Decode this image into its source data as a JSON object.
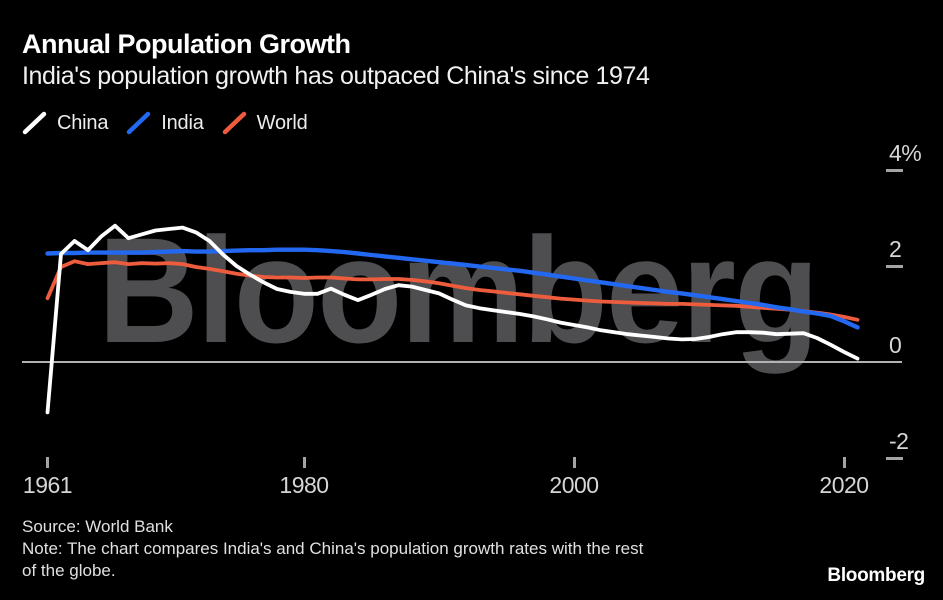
{
  "header": {
    "title": "Annual Population Growth",
    "subtitle": "India's population growth has outpaced China's since 1974"
  },
  "legend": {
    "items": [
      {
        "label": "China",
        "color": "#ffffff"
      },
      {
        "label": "India",
        "color": "#2368f0"
      },
      {
        "label": "World",
        "color": "#ee5c3e"
      }
    ]
  },
  "watermark": {
    "text": "Bloomberg",
    "color": "#4e4e50"
  },
  "footer": {
    "source": "Source: World Bank",
    "note_lines": [
      "Note: The chart compares India's and China's population growth rates with the rest",
      "of the globe."
    ],
    "logo": "Bloomberg"
  },
  "chart_data": {
    "type": "line",
    "title": "Annual Population Growth",
    "subtitle": "India's population growth has outpaced China's since 1974",
    "unit": "% annual population growth",
    "x_range": [
      1961,
      2021
    ],
    "ylim": [
      -2.6,
      4.5
    ],
    "grid": false,
    "legend_position": "top-left",
    "x_axis": {
      "ticks": [
        {
          "label": "1961",
          "year": 1961
        },
        {
          "label": "1980",
          "year": 1980
        },
        {
          "label": "2000",
          "year": 2000
        },
        {
          "label": "2020",
          "year": 2020
        }
      ]
    },
    "y_axis": {
      "ticks": [
        {
          "label": "4%",
          "value": 4
        },
        {
          "label": "2",
          "value": 2
        },
        {
          "label": "0",
          "value": 0
        },
        {
          "label": "-2",
          "value": -2
        }
      ],
      "zero_line": true
    },
    "years": [
      1961,
      1962,
      1963,
      1964,
      1965,
      1966,
      1967,
      1968,
      1969,
      1970,
      1971,
      1972,
      1973,
      1974,
      1975,
      1976,
      1977,
      1978,
      1979,
      1980,
      1981,
      1982,
      1983,
      1984,
      1985,
      1986,
      1987,
      1988,
      1989,
      1990,
      1991,
      1992,
      1993,
      1994,
      1995,
      1996,
      1997,
      1998,
      1999,
      2000,
      2001,
      2002,
      2003,
      2004,
      2005,
      2006,
      2007,
      2008,
      2009,
      2010,
      2011,
      2012,
      2013,
      2014,
      2015,
      2016,
      2017,
      2018,
      2019,
      2020,
      2021
    ],
    "series": [
      {
        "name": "China",
        "color": "#ffffff",
        "values": [
          -1.05,
          2.25,
          2.52,
          2.33,
          2.62,
          2.84,
          2.58,
          2.66,
          2.74,
          2.77,
          2.8,
          2.7,
          2.52,
          2.24,
          2.0,
          1.82,
          1.66,
          1.52,
          1.46,
          1.42,
          1.42,
          1.53,
          1.4,
          1.29,
          1.4,
          1.52,
          1.6,
          1.57,
          1.5,
          1.43,
          1.3,
          1.18,
          1.12,
          1.08,
          1.04,
          1.0,
          0.95,
          0.89,
          0.82,
          0.77,
          0.72,
          0.66,
          0.62,
          0.58,
          0.55,
          0.52,
          0.49,
          0.47,
          0.48,
          0.52,
          0.58,
          0.62,
          0.62,
          0.61,
          0.58,
          0.59,
          0.6,
          0.5,
          0.36,
          0.21,
          0.07
        ]
      },
      {
        "name": "India",
        "color": "#2368f0",
        "values": [
          2.26,
          2.27,
          2.27,
          2.28,
          2.28,
          2.28,
          2.28,
          2.28,
          2.29,
          2.3,
          2.31,
          2.3,
          2.3,
          2.31,
          2.32,
          2.33,
          2.33,
          2.34,
          2.34,
          2.34,
          2.33,
          2.31,
          2.29,
          2.26,
          2.23,
          2.2,
          2.17,
          2.14,
          2.11,
          2.08,
          2.05,
          2.02,
          1.99,
          1.96,
          1.93,
          1.9,
          1.86,
          1.82,
          1.78,
          1.74,
          1.7,
          1.66,
          1.62,
          1.58,
          1.54,
          1.5,
          1.46,
          1.43,
          1.39,
          1.35,
          1.31,
          1.27,
          1.23,
          1.19,
          1.14,
          1.1,
          1.05,
          1.01,
          0.96,
          0.85,
          0.72
        ]
      },
      {
        "name": "World",
        "color": "#ee5c3e",
        "values": [
          1.33,
          1.98,
          2.1,
          2.04,
          2.06,
          2.08,
          2.04,
          2.06,
          2.05,
          2.06,
          2.04,
          1.98,
          1.94,
          1.89,
          1.84,
          1.8,
          1.77,
          1.76,
          1.76,
          1.75,
          1.76,
          1.76,
          1.74,
          1.72,
          1.72,
          1.73,
          1.73,
          1.71,
          1.68,
          1.64,
          1.59,
          1.54,
          1.5,
          1.47,
          1.44,
          1.41,
          1.38,
          1.35,
          1.32,
          1.3,
          1.28,
          1.26,
          1.25,
          1.24,
          1.23,
          1.22,
          1.21,
          1.21,
          1.2,
          1.19,
          1.18,
          1.17,
          1.15,
          1.13,
          1.11,
          1.09,
          1.06,
          1.03,
          0.99,
          0.94,
          0.88
        ]
      }
    ]
  }
}
